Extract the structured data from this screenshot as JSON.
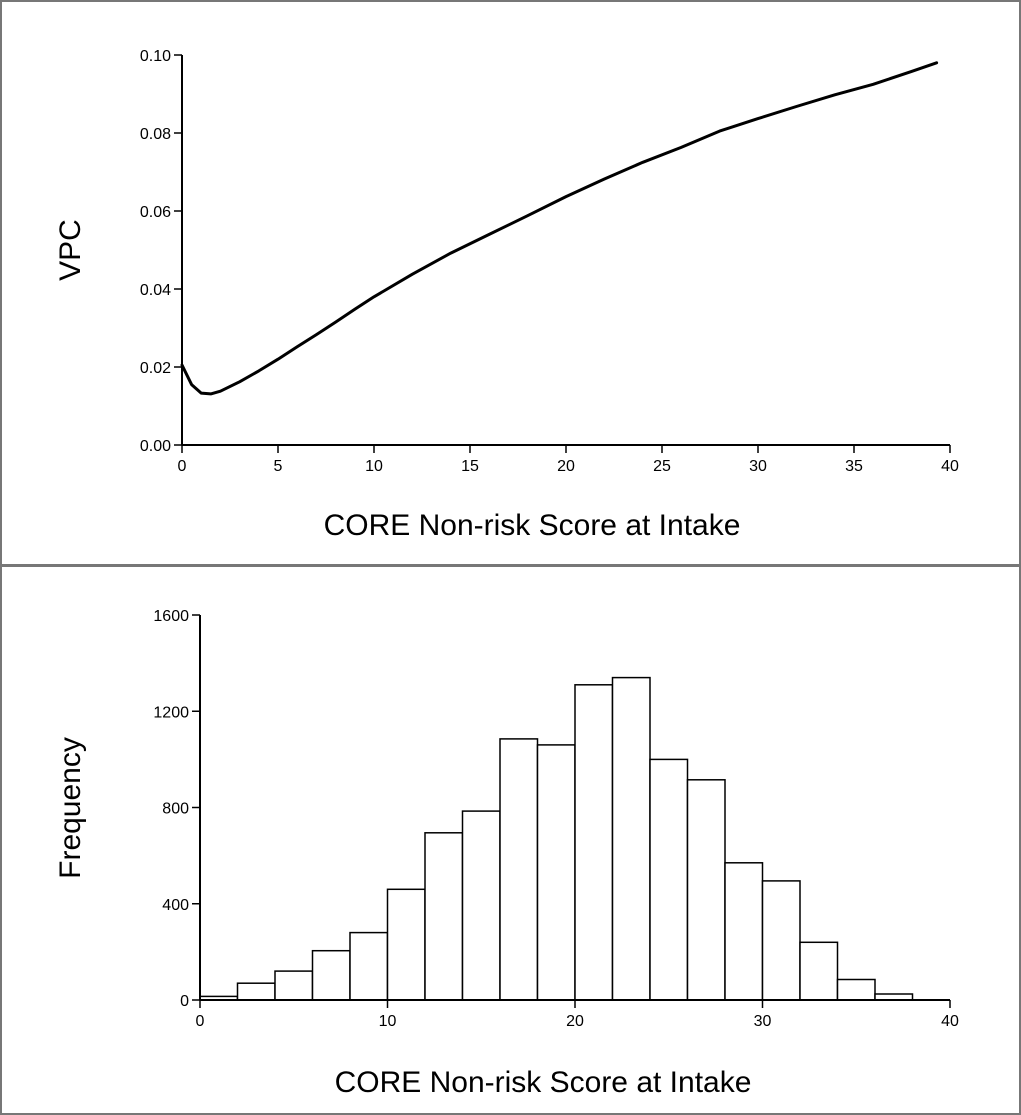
{
  "chart_data": [
    {
      "type": "line",
      "title": "",
      "xlabel": "CORE Non-risk Score at Intake",
      "ylabel": "VPC",
      "xlim": [
        0,
        40
      ],
      "ylim": [
        0.0,
        0.1
      ],
      "xticks": [
        "0",
        "5",
        "10",
        "15",
        "20",
        "25",
        "30",
        "35",
        "40"
      ],
      "yticks": [
        "0.00",
        "0.02",
        "0.04",
        "0.06",
        "0.08",
        "0.10"
      ],
      "grid": false,
      "series": [
        {
          "x": [
            0,
            0.5,
            1,
            1.5,
            2,
            3,
            4,
            5,
            6,
            7,
            8,
            9,
            10,
            12,
            14,
            16,
            18,
            20,
            22,
            24,
            26,
            28,
            30,
            32,
            34,
            36,
            38,
            39.3
          ],
          "y": [
            0.0205,
            0.0155,
            0.0133,
            0.0131,
            0.0138,
            0.0162,
            0.019,
            0.022,
            0.0252,
            0.0283,
            0.0315,
            0.0348,
            0.038,
            0.0438,
            0.0492,
            0.054,
            0.0588,
            0.0637,
            0.0682,
            0.0725,
            0.0763,
            0.0805,
            0.0837,
            0.0868,
            0.0898,
            0.0925,
            0.0958,
            0.098
          ]
        }
      ]
    },
    {
      "type": "bar",
      "title": "",
      "xlabel": "CORE Non-risk Score at Intake",
      "ylabel": "Frequency",
      "xlim": [
        0,
        40
      ],
      "ylim": [
        0,
        1600
      ],
      "xticks": [
        "0",
        "10",
        "20",
        "30",
        "40"
      ],
      "yticks": [
        "0",
        "400",
        "800",
        "1200",
        "1600"
      ],
      "grid": false,
      "bin_edges": [
        0,
        2,
        4,
        6,
        8,
        10,
        12,
        14,
        16,
        18,
        20,
        22,
        24,
        26,
        28,
        30,
        32,
        34,
        36,
        38
      ],
      "values": [
        15,
        70,
        120,
        205,
        280,
        460,
        695,
        785,
        1085,
        1060,
        1310,
        1340,
        1000,
        915,
        570,
        495,
        240,
        85,
        25
      ]
    }
  ]
}
